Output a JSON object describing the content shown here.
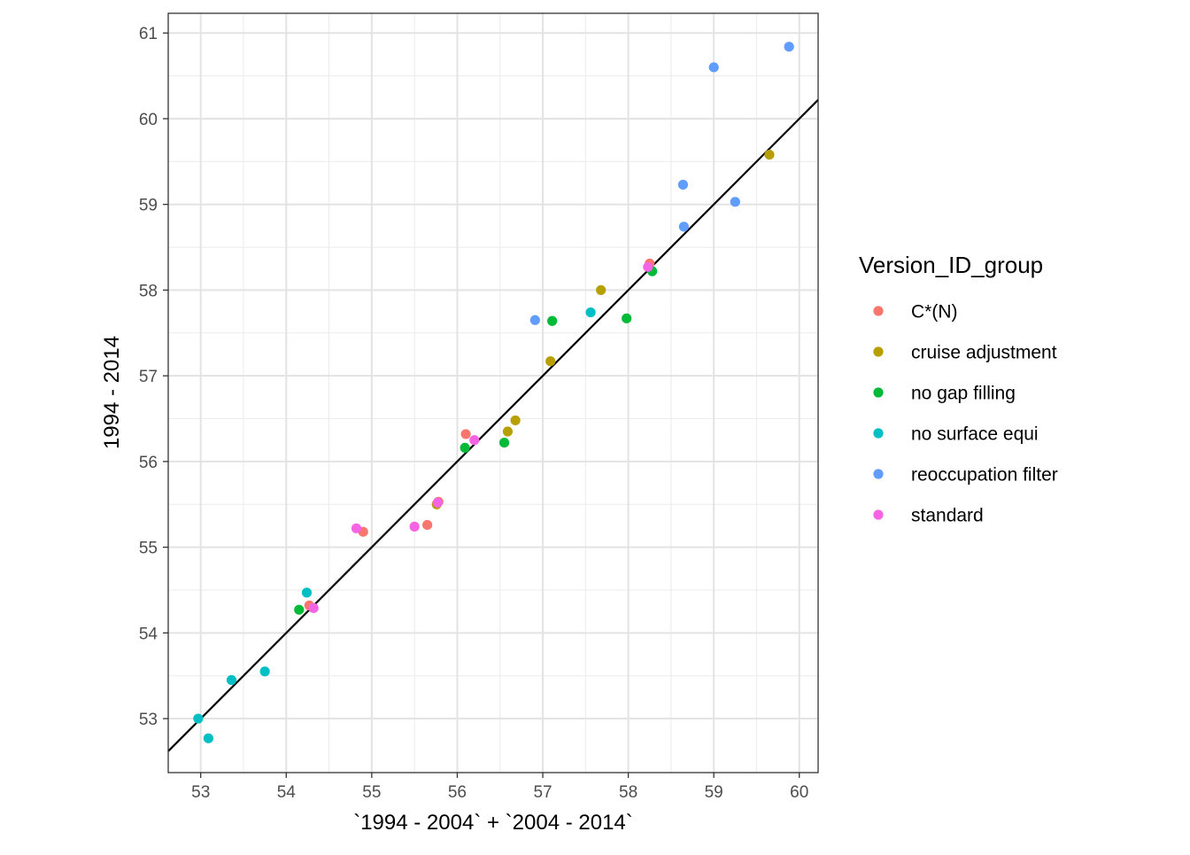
{
  "chart_data": {
    "type": "scatter",
    "xlabel": "`1994 - 2004` + `2004 - 2014`",
    "ylabel": "1994 - 2014",
    "xlim": [
      52.62,
      60.22
    ],
    "ylim": [
      52.37,
      61.23
    ],
    "x_ticks": [
      53,
      54,
      55,
      56,
      57,
      58,
      59,
      60
    ],
    "y_ticks": [
      53,
      54,
      55,
      56,
      57,
      58,
      59,
      60,
      61
    ],
    "grid": true,
    "reference_line": {
      "slope": 1,
      "intercept": 0,
      "color": "#000000"
    },
    "legend": {
      "title": "Version_ID_group",
      "placement": "right"
    },
    "series": [
      {
        "name": "C*(N)",
        "color": "#F8766D",
        "points": [
          [
            54.27,
            54.32
          ],
          [
            54.9,
            55.18
          ],
          [
            55.65,
            55.26
          ],
          [
            55.78,
            55.53
          ],
          [
            56.1,
            56.32
          ],
          [
            58.25,
            58.31
          ]
        ]
      },
      {
        "name": "cruise adjustment",
        "color": "#B79F00",
        "points": [
          [
            55.76,
            55.5
          ],
          [
            56.59,
            56.35
          ],
          [
            56.68,
            56.48
          ],
          [
            57.09,
            57.17
          ],
          [
            57.68,
            58.0
          ],
          [
            59.65,
            59.58
          ]
        ]
      },
      {
        "name": "no gap filling",
        "color": "#00BA38",
        "points": [
          [
            54.15,
            54.27
          ],
          [
            56.09,
            56.16
          ],
          [
            56.55,
            56.22
          ],
          [
            57.11,
            57.64
          ],
          [
            57.98,
            57.67
          ],
          [
            58.28,
            58.22
          ]
        ]
      },
      {
        "name": "no surface equi",
        "color": "#00BFC4",
        "points": [
          [
            52.97,
            53.0
          ],
          [
            53.09,
            52.77
          ],
          [
            53.36,
            53.45
          ],
          [
            53.75,
            53.55
          ],
          [
            54.24,
            54.47
          ],
          [
            57.56,
            57.74
          ]
        ]
      },
      {
        "name": "reoccupation filter",
        "color": "#619CFF",
        "points": [
          [
            56.91,
            57.65
          ],
          [
            58.64,
            59.23
          ],
          [
            58.65,
            58.74
          ],
          [
            59.0,
            60.6
          ],
          [
            59.25,
            59.03
          ],
          [
            59.88,
            60.84
          ]
        ]
      },
      {
        "name": "standard",
        "color": "#F564E3",
        "points": [
          [
            54.32,
            54.29
          ],
          [
            54.82,
            55.22
          ],
          [
            55.5,
            55.24
          ],
          [
            55.77,
            55.52
          ],
          [
            56.2,
            56.25
          ],
          [
            58.23,
            58.27
          ]
        ]
      }
    ]
  }
}
